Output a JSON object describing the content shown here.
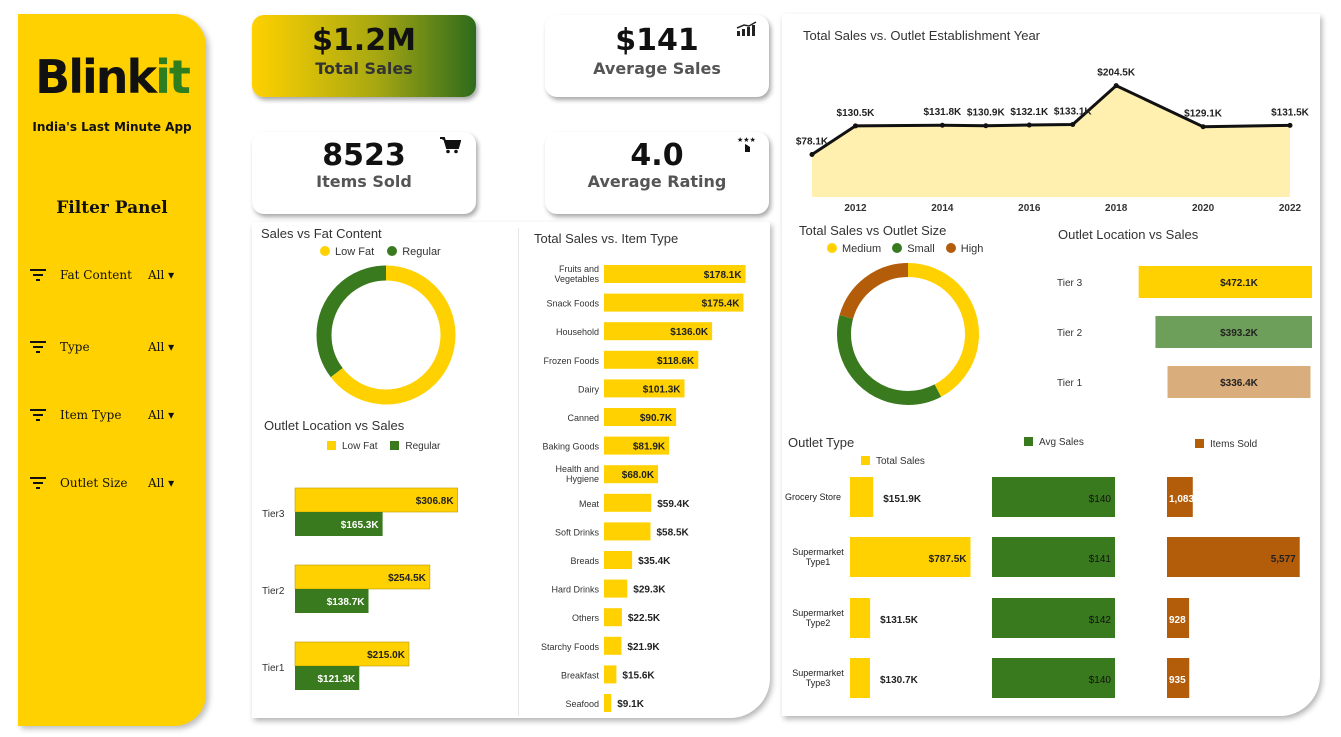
{
  "brand": {
    "name_main": "Blink",
    "name_accent": "it",
    "tagline": "India's Last Minute App"
  },
  "colors": {
    "yellow": "#FFD100",
    "green": "#3A7A1E",
    "orange": "#B35C0A",
    "tier2": "#6E9F5A",
    "tier1": "#D9AD7C",
    "area_fill": "#FFF0B0"
  },
  "filter_panel": {
    "title": "Filter Panel",
    "filters": [
      {
        "label": "Fat Content",
        "value": "All"
      },
      {
        "label": "Type",
        "value": "All"
      },
      {
        "label": "Item Type",
        "value": "All"
      },
      {
        "label": "Outlet Size",
        "value": "All"
      }
    ]
  },
  "kpis": {
    "total_sales": {
      "value": "$1.2M",
      "label": "Total Sales"
    },
    "average_sales": {
      "value": "$141",
      "label": "Average Sales"
    },
    "items_sold": {
      "value": "8523",
      "label": "Items Sold"
    },
    "average_rating": {
      "value": "4.0",
      "label": "Average Rating"
    }
  },
  "chart_data": [
    {
      "id": "fat_content",
      "type": "pie",
      "title": "Sales vs Fat Content",
      "categories": [
        "Low Fat",
        "Regular"
      ],
      "values": [
        776.3,
        425.4
      ]
    },
    {
      "id": "fat_by_location",
      "type": "bar",
      "title": "Outlet Location vs Sales",
      "categories": [
        "Tier3",
        "Tier2",
        "Tier1"
      ],
      "series": [
        {
          "name": "Low Fat",
          "values": [
            306.8,
            254.5,
            215.0
          ],
          "labels": [
            "$306.8K",
            "$254.5K",
            "$215.0K"
          ]
        },
        {
          "name": "Regular",
          "values": [
            165.3,
            138.7,
            121.3
          ],
          "labels": [
            "$165.3K",
            "$138.7K",
            "$121.3K"
          ]
        }
      ]
    },
    {
      "id": "item_type",
      "type": "bar",
      "title": "Total Sales vs. Item Type",
      "categories": [
        "Fruits and Vegetables",
        "Snack Foods",
        "Household",
        "Frozen Foods",
        "Dairy",
        "Canned",
        "Baking Goods",
        "Health and Hygiene",
        "Meat",
        "Soft Drinks",
        "Breads",
        "Hard Drinks",
        "Others",
        "Starchy Foods",
        "Breakfast",
        "Seafood"
      ],
      "category_lines": [
        [
          "Fruits and",
          "Vegetables"
        ],
        [
          "Snack Foods"
        ],
        [
          "Household"
        ],
        [
          "Frozen Foods"
        ],
        [
          "Dairy"
        ],
        [
          "Canned"
        ],
        [
          "Baking Goods"
        ],
        [
          "Health and",
          "Hygiene"
        ],
        [
          "Meat"
        ],
        [
          "Soft Drinks"
        ],
        [
          "Breads"
        ],
        [
          "Hard Drinks"
        ],
        [
          "Others"
        ],
        [
          "Starchy Foods"
        ],
        [
          "Breakfast"
        ],
        [
          "Seafood"
        ]
      ],
      "values": [
        178.1,
        175.4,
        136.0,
        118.6,
        101.3,
        90.7,
        81.9,
        68.0,
        59.4,
        58.5,
        35.4,
        29.3,
        22.5,
        21.9,
        15.6,
        9.1
      ],
      "labels": [
        "$178.1K",
        "$175.4K",
        "$136.0K",
        "$118.6K",
        "$101.3K",
        "$90.7K",
        "$81.9K",
        "$68.0K",
        "$59.4K",
        "$58.5K",
        "$35.4K",
        "$29.3K",
        "$22.5K",
        "$21.9K",
        "$15.6K",
        "$9.1K"
      ]
    },
    {
      "id": "establishment_year",
      "type": "area",
      "title": "Total Sales vs. Outlet Establishment Year",
      "x": [
        2011,
        2012,
        2014,
        2015,
        2016,
        2017,
        2018,
        2020,
        2022
      ],
      "values": [
        78.1,
        130.5,
        131.8,
        130.9,
        132.1,
        133.1,
        204.5,
        129.1,
        131.5
      ],
      "labels": [
        "$78.1K",
        "$130.5K",
        "$131.8K",
        "$130.9K",
        "$132.1K",
        "$133.1K",
        "$204.5K",
        "$129.1K",
        "$131.5K"
      ],
      "x_ticks": [
        "2012",
        "2014",
        "2016",
        "2018",
        "2020",
        "2022"
      ]
    },
    {
      "id": "outlet_size",
      "type": "pie",
      "title": "Total Sales vs Outlet Size",
      "categories": [
        "Medium",
        "Small",
        "High"
      ],
      "values": [
        507.9,
        444.8,
        248.99
      ]
    },
    {
      "id": "outlet_location",
      "type": "bar",
      "title": "Outlet Location vs Sales",
      "categories": [
        "Tier 3",
        "Tier 2",
        "Tier 1"
      ],
      "values": [
        472.1,
        393.2,
        336.4
      ],
      "labels": [
        "$472.1K",
        "$393.2K",
        "$336.4K"
      ]
    },
    {
      "id": "outlet_type",
      "type": "table",
      "title": "Outlet Type",
      "categories": [
        "Grocery Store",
        "Supermarket Type1",
        "Supermarket Type2",
        "Supermarket Type3"
      ],
      "category_lines": [
        [
          "Grocery Store"
        ],
        [
          "Supermarket",
          "Type1"
        ],
        [
          "Supermarket",
          "Type2"
        ],
        [
          "Supermarket",
          "Type3"
        ]
      ],
      "series": [
        {
          "name": "Total Sales",
          "values": [
            151.9,
            787.5,
            131.5,
            130.7
          ],
          "labels": [
            "$151.9K",
            "$787.5K",
            "$131.5K",
            "$130.7K"
          ]
        },
        {
          "name": "Avg Sales",
          "values": [
            140,
            141,
            142,
            140
          ],
          "labels": [
            "$140",
            "$141",
            "$142",
            "$140"
          ]
        },
        {
          "name": "Items Sold",
          "values": [
            1083,
            5577,
            928,
            935
          ],
          "labels": [
            "1,083",
            "5,577",
            "928",
            "935"
          ]
        }
      ]
    }
  ]
}
